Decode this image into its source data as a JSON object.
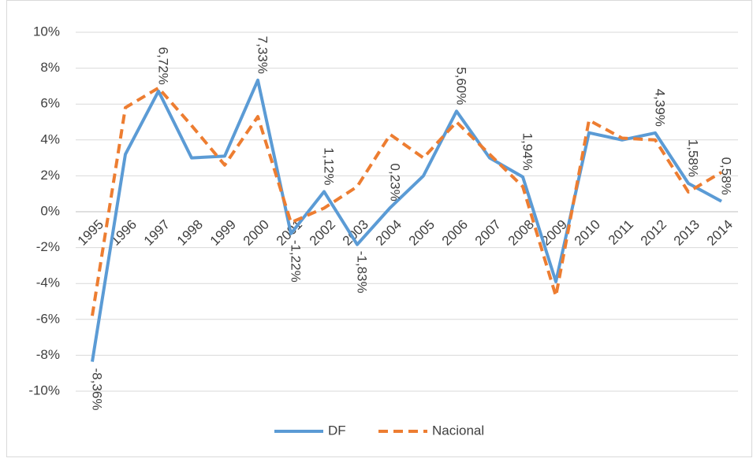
{
  "chart_data": {
    "type": "line",
    "categories": [
      "1995",
      "1996",
      "1997",
      "1998",
      "1999",
      "2000",
      "2001",
      "2002",
      "2003",
      "2004",
      "2005",
      "2006",
      "2007",
      "2008",
      "2009",
      "2010",
      "2011",
      "2012",
      "2013",
      "2014"
    ],
    "series": [
      {
        "name": "DF",
        "color": "#5b9bd5",
        "dash": false,
        "values": [
          -8.36,
          3.2,
          6.72,
          3.0,
          3.1,
          7.33,
          -1.22,
          1.12,
          -1.83,
          0.23,
          2.0,
          5.6,
          3.0,
          1.94,
          -3.9,
          4.4,
          4.0,
          4.39,
          1.58,
          0.58
        ],
        "value_labels": [
          "-8,36%",
          null,
          "6,72%",
          null,
          null,
          "7,33%",
          "-1,22%",
          "1,12%",
          "-1,83%",
          "0,23%",
          null,
          "5,60%",
          null,
          "1,94%",
          null,
          null,
          null,
          "4,39%",
          "1,58%",
          "0,58%"
        ]
      },
      {
        "name": "Nacional",
        "color": "#ed7d31",
        "dash": true,
        "values": [
          -5.8,
          5.8,
          6.9,
          4.8,
          2.6,
          5.3,
          -0.6,
          0.2,
          1.4,
          4.3,
          3.0,
          5.0,
          3.2,
          1.4,
          -4.7,
          5.1,
          4.1,
          4.0,
          1.1,
          2.2
        ]
      }
    ],
    "ylim": [
      -10,
      10
    ],
    "yticks": [
      {
        "value": -10,
        "label": "-10%"
      },
      {
        "value": -8,
        "label": "-8%"
      },
      {
        "value": -6,
        "label": "-6%"
      },
      {
        "value": -4,
        "label": "-4%"
      },
      {
        "value": -2,
        "label": "-2%"
      },
      {
        "value": 0,
        "label": "0%"
      },
      {
        "value": 2,
        "label": "2%"
      },
      {
        "value": 4,
        "label": "4%"
      },
      {
        "value": 6,
        "label": "6%"
      },
      {
        "value": 8,
        "label": "8%"
      },
      {
        "value": 10,
        "label": "10%"
      }
    ],
    "grid": true,
    "legend": "bottom"
  }
}
